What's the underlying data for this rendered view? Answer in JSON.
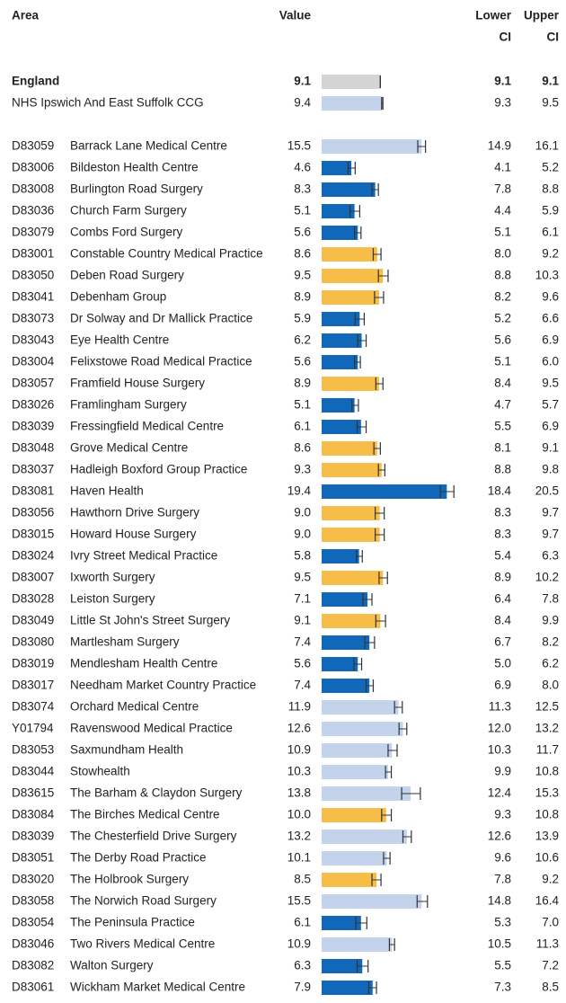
{
  "chart_data": {
    "type": "bar",
    "headers": {
      "area": "Area",
      "value": "Value",
      "lower": [
        "Lower",
        "CI"
      ],
      "upper": [
        "Upper",
        "CI"
      ]
    },
    "xlim": [
      0,
      22
    ],
    "areas": [
      {
        "name": "England",
        "value": 9.1,
        "lower": 9.1,
        "upper": 9.1,
        "color": "#d4d4d4",
        "bold": true
      },
      {
        "name": "NHS Ipswich And East Suffolk CCG",
        "value": 9.4,
        "lower": 9.3,
        "upper": 9.5,
        "color": "#c3d3ec"
      }
    ],
    "practices": [
      {
        "code": "D83059",
        "name": "Barrack Lane Medical Centre",
        "value": 15.5,
        "lower": 14.9,
        "upper": 16.1,
        "color": "#c3d3ec"
      },
      {
        "code": "D83006",
        "name": "Bildeston Health Centre",
        "value": 4.6,
        "lower": 4.1,
        "upper": 5.2,
        "color": "#1268b8"
      },
      {
        "code": "D83008",
        "name": "Burlington Road Surgery",
        "value": 8.3,
        "lower": 7.8,
        "upper": 8.8,
        "color": "#1268b8"
      },
      {
        "code": "D83036",
        "name": "Church Farm Surgery",
        "value": 5.1,
        "lower": 4.4,
        "upper": 5.9,
        "color": "#1268b8"
      },
      {
        "code": "D83079",
        "name": "Combs Ford Surgery",
        "value": 5.6,
        "lower": 5.1,
        "upper": 6.1,
        "color": "#1268b8"
      },
      {
        "code": "D83001",
        "name": "Constable Country Medical Practice",
        "value": 8.6,
        "lower": 8.0,
        "lower_label": "8.0",
        "upper": 9.2,
        "color": "#f6bd49"
      },
      {
        "code": "D83050",
        "name": "Deben Road Surgery",
        "value": 9.5,
        "lower": 8.8,
        "upper": 10.3,
        "color": "#f6bd49"
      },
      {
        "code": "D83041",
        "name": "Debenham Group",
        "value": 8.9,
        "lower": 8.2,
        "upper": 9.6,
        "color": "#f6bd49"
      },
      {
        "code": "D83073",
        "name": "Dr Solway and Dr Mallick Practice",
        "value": 5.9,
        "lower": 5.2,
        "upper": 6.6,
        "color": "#1268b8"
      },
      {
        "code": "D83043",
        "name": "Eye Health Centre",
        "value": 6.2,
        "lower": 5.6,
        "upper": 6.9,
        "color": "#1268b8"
      },
      {
        "code": "D83004",
        "name": "Felixstowe Road Medical Practice",
        "value": 5.6,
        "lower": 5.1,
        "upper": 6.0,
        "upper_label": "6.0",
        "color": "#1268b8"
      },
      {
        "code": "D83057",
        "name": "Framfield House Surgery",
        "value": 8.9,
        "lower": 8.4,
        "upper": 9.5,
        "color": "#f6bd49"
      },
      {
        "code": "D83026",
        "name": "Framlingham Surgery",
        "value": 5.1,
        "lower": 4.7,
        "upper": 5.7,
        "color": "#1268b8"
      },
      {
        "code": "D83039",
        "name": "Fressingfield Medical Centre",
        "value": 6.1,
        "lower": 5.5,
        "upper": 6.9,
        "color": "#1268b8"
      },
      {
        "code": "D83048",
        "name": "Grove Medical Centre",
        "value": 8.6,
        "lower": 8.1,
        "upper": 9.1,
        "color": "#f6bd49"
      },
      {
        "code": "D83037",
        "name": "Hadleigh Boxford Group Practice",
        "value": 9.3,
        "lower": 8.8,
        "upper": 9.8,
        "color": "#f6bd49"
      },
      {
        "code": "D83081",
        "name": "Haven Health",
        "value": 19.4,
        "lower": 18.4,
        "upper": 20.5,
        "color": "#1268b8"
      },
      {
        "code": "D83056",
        "name": "Hawthorn Drive Surgery",
        "value": 9.0,
        "value_label": "9.0",
        "lower": 8.3,
        "upper": 9.7,
        "color": "#f6bd49"
      },
      {
        "code": "D83015",
        "name": "Howard House Surgery",
        "value": 9.0,
        "value_label": "9.0",
        "lower": 8.3,
        "upper": 9.7,
        "color": "#f6bd49"
      },
      {
        "code": "D83024",
        "name": "Ivry Street Medical Practice",
        "value": 5.8,
        "lower": 5.4,
        "upper": 6.3,
        "color": "#1268b8"
      },
      {
        "code": "D83007",
        "name": "Ixworth Surgery",
        "value": 9.5,
        "lower": 8.9,
        "upper": 10.2,
        "color": "#f6bd49"
      },
      {
        "code": "D83028",
        "name": "Leiston Surgery",
        "value": 7.1,
        "lower": 6.4,
        "upper": 7.8,
        "color": "#1268b8"
      },
      {
        "code": "D83049",
        "name": "Little St John's Street Surgery",
        "value": 9.1,
        "lower": 8.4,
        "upper": 9.9,
        "color": "#f6bd49"
      },
      {
        "code": "D83080",
        "name": "Martlesham Surgery",
        "value": 7.4,
        "lower": 6.7,
        "upper": 8.2,
        "color": "#1268b8"
      },
      {
        "code": "D83019",
        "name": "Mendlesham Health Centre",
        "value": 5.6,
        "lower": 5.0,
        "lower_label": "5.0",
        "upper": 6.2,
        "color": "#1268b8"
      },
      {
        "code": "D83017",
        "name": "Needham Market Country Practice",
        "value": 7.4,
        "lower": 6.9,
        "upper": 8.0,
        "upper_label": "8.0",
        "color": "#1268b8"
      },
      {
        "code": "D83074",
        "name": "Orchard Medical Centre",
        "value": 11.9,
        "lower": 11.3,
        "upper": 12.5,
        "color": "#c3d3ec"
      },
      {
        "code": "Y01794",
        "name": "Ravenswood Medical Practice",
        "value": 12.6,
        "lower": 12.0,
        "lower_label": "12.0",
        "upper": 13.2,
        "color": "#c3d3ec"
      },
      {
        "code": "D83053",
        "name": "Saxmundham Health",
        "value": 10.9,
        "lower": 10.3,
        "upper": 11.7,
        "color": "#c3d3ec"
      },
      {
        "code": "D83044",
        "name": "Stowhealth",
        "value": 10.3,
        "lower": 9.9,
        "upper": 10.8,
        "color": "#c3d3ec"
      },
      {
        "code": "D83615",
        "name": "The Barham & Claydon Surgery",
        "value": 13.8,
        "lower": 12.4,
        "upper": 15.3,
        "color": "#c3d3ec"
      },
      {
        "code": "D83084",
        "name": "The Birches Medical Centre",
        "value": 10.0,
        "value_label": "10.0",
        "lower": 9.3,
        "upper": 10.8,
        "color": "#f6bd49"
      },
      {
        "code": "D83039",
        "name": "The Chesterfield Drive Surgery",
        "value": 13.2,
        "lower": 12.6,
        "upper": 13.9,
        "color": "#c3d3ec"
      },
      {
        "code": "D83051",
        "name": "The Derby Road Practice",
        "value": 10.1,
        "lower": 9.6,
        "upper": 10.6,
        "color": "#c3d3ec"
      },
      {
        "code": "D83020",
        "name": "The Holbrook Surgery",
        "value": 8.5,
        "lower": 7.8,
        "upper": 9.2,
        "color": "#f6bd49"
      },
      {
        "code": "D83058",
        "name": "The Norwich Road Surgery",
        "value": 15.5,
        "lower": 14.8,
        "upper": 16.4,
        "color": "#c3d3ec"
      },
      {
        "code": "D83054",
        "name": "The Peninsula Practice",
        "value": 6.1,
        "lower": 5.3,
        "upper": 7.0,
        "upper_label": "7.0",
        "color": "#1268b8"
      },
      {
        "code": "D83046",
        "name": "Two Rivers Medical Centre",
        "value": 10.9,
        "lower": 10.5,
        "upper": 11.3,
        "color": "#c3d3ec"
      },
      {
        "code": "D83082",
        "name": "Walton Surgery",
        "value": 6.3,
        "lower": 5.5,
        "upper": 7.2,
        "color": "#1268b8"
      },
      {
        "code": "D83061",
        "name": "Wickham Market Medical Centre",
        "value": 7.9,
        "lower": 7.3,
        "upper": 8.5,
        "color": "#1268b8"
      }
    ]
  }
}
